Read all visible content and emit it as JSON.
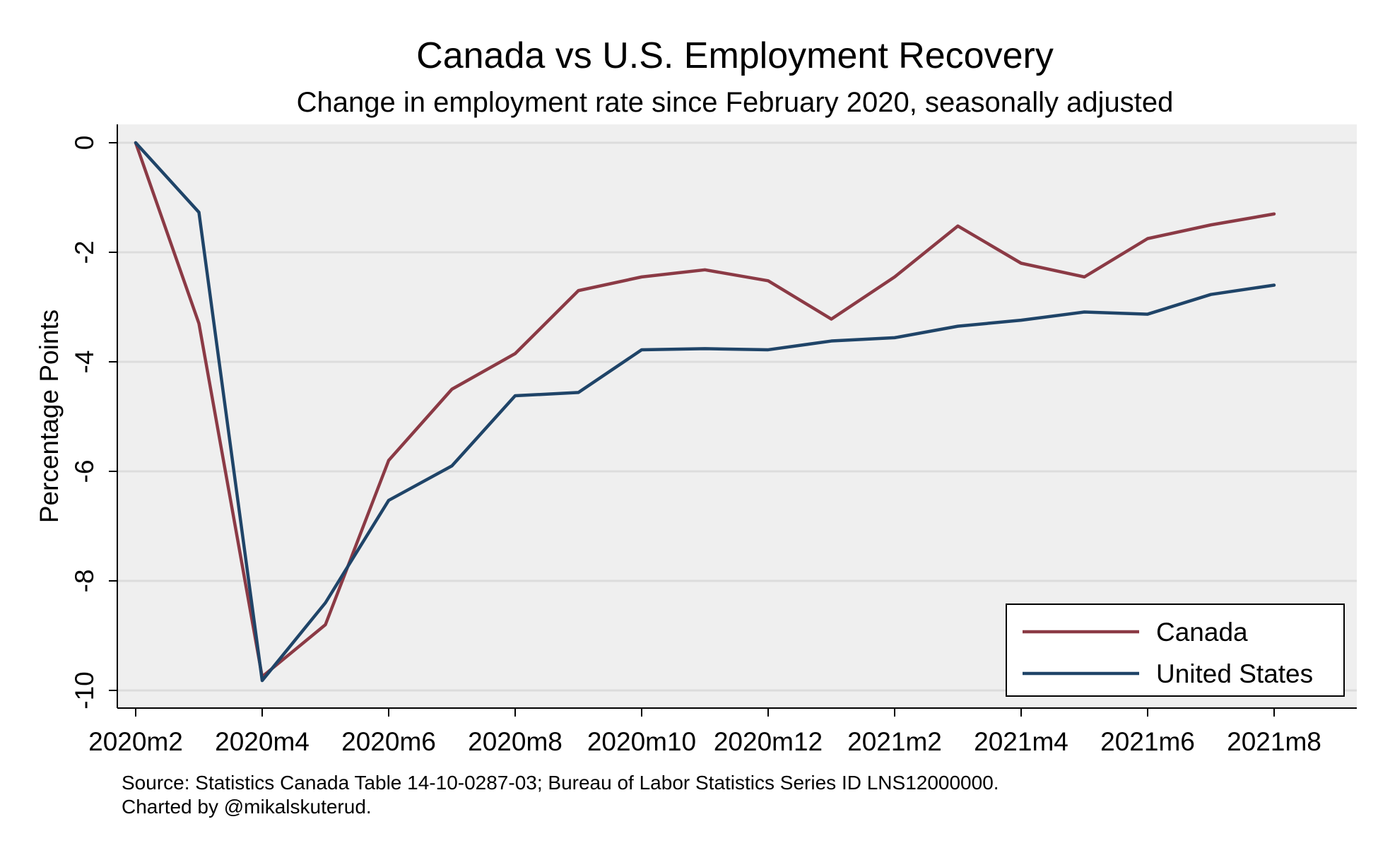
{
  "chart_data": {
    "type": "line",
    "title": "Canada vs U.S. Employment Recovery",
    "subtitle": "Change in employment rate since February 2020, seasonally adjusted",
    "xlabel": "",
    "ylabel": "Percentage Points",
    "x": [
      "2020m2",
      "2020m3",
      "2020m4",
      "2020m5",
      "2020m6",
      "2020m7",
      "2020m8",
      "2020m9",
      "2020m10",
      "2020m11",
      "2020m12",
      "2021m1",
      "2021m2",
      "2021m3",
      "2021m4",
      "2021m5",
      "2021m6",
      "2021m7",
      "2021m8"
    ],
    "x_tick_labels": [
      "2020m2",
      "2020m4",
      "2020m6",
      "2020m8",
      "2020m10",
      "2020m12",
      "2021m2",
      "2021m4",
      "2021m6",
      "2021m8"
    ],
    "ylim": [
      -10,
      0
    ],
    "y_ticks": [
      0,
      -2,
      -4,
      -6,
      -8,
      -10
    ],
    "y_tick_labels": [
      "0",
      "-2",
      "-4",
      "-6",
      "-8",
      "-10"
    ],
    "grid": true,
    "legend_position": "bottom-right",
    "series": [
      {
        "name": "Canada",
        "color": "#8B3A45",
        "values": [
          0,
          -3.3,
          -9.75,
          -8.8,
          -5.8,
          -4.5,
          -3.85,
          -2.7,
          -2.45,
          -2.32,
          -2.52,
          -3.22,
          -2.45,
          -1.52,
          -2.2,
          -2.45,
          -1.75,
          -1.5,
          -1.3
        ]
      },
      {
        "name": "United States",
        "color": "#1F4468",
        "values": [
          0,
          -1.27,
          -9.82,
          -8.4,
          -6.53,
          -5.9,
          -4.62,
          -4.56,
          -3.78,
          -3.76,
          -3.78,
          -3.62,
          -3.56,
          -3.35,
          -3.24,
          -3.09,
          -3.13,
          -2.77,
          -2.6
        ]
      }
    ]
  },
  "source_note": {
    "line1": "Source: Statistics Canada Table 14-10-0287-03; Bureau of Labor Statistics Series ID LNS12000000.",
    "line2": "Charted by @mikalskuterud."
  }
}
